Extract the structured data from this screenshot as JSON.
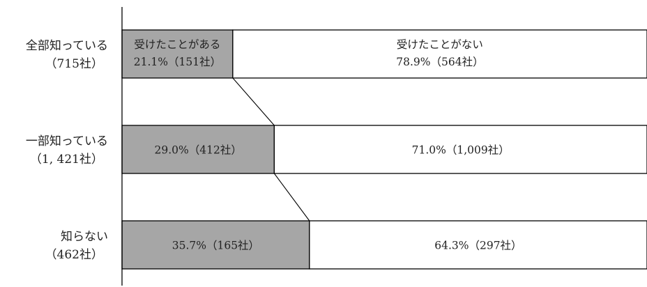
{
  "chart_data": {
    "type": "bar",
    "orientation": "horizontal",
    "stacked": true,
    "percent_stacked": true,
    "categories": [
      {
        "line1": "全部知っている",
        "line2": "（715社）"
      },
      {
        "line1": "一部知っている",
        "line2": "（1, 421社）"
      },
      {
        "line1": "知らない",
        "line2": "（462社）"
      }
    ],
    "series": [
      {
        "name": "受けたことがある",
        "color": "#a6a6a6",
        "values": [
          21.1,
          29.0,
          35.7
        ],
        "labels": [
          "21.1%（151社）",
          "29.0%（412社）",
          "35.7%（165社）"
        ]
      },
      {
        "name": "受けたことがない",
        "color": "#ffffff",
        "values": [
          78.9,
          71.0,
          64.3
        ],
        "labels": [
          "78.9%（564社）",
          "71.0%（1,009社）",
          "64.3%（297社）"
        ]
      }
    ],
    "series_labels_shown_in_first_bar": true,
    "series_lines": true,
    "xlim": [
      0,
      100
    ],
    "grid": false,
    "legend": "none"
  }
}
